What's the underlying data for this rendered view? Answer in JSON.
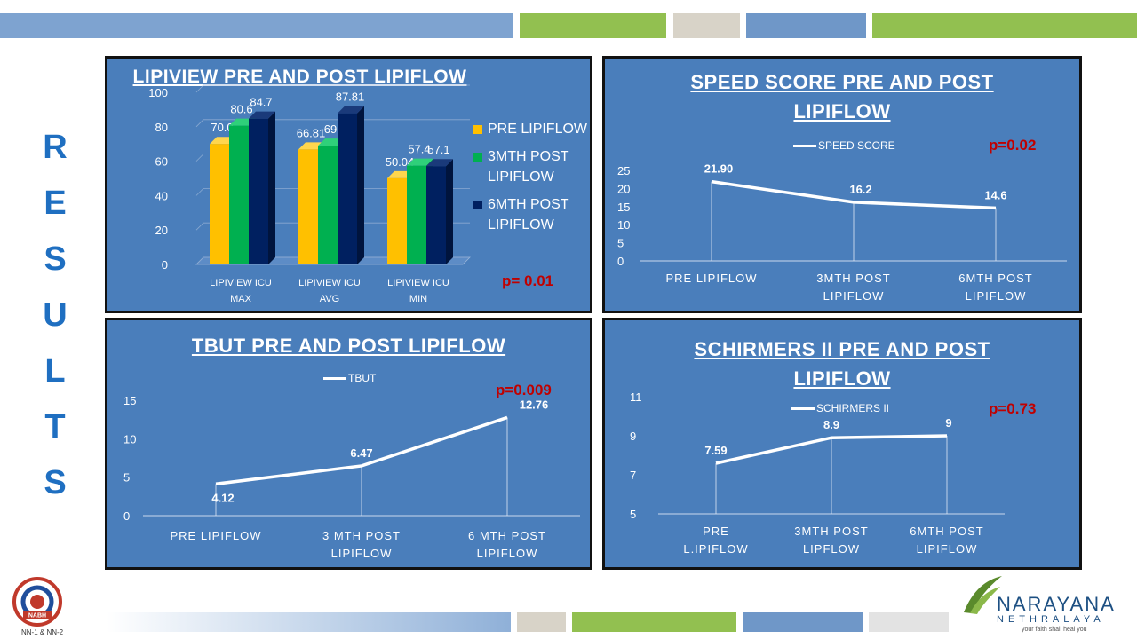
{
  "heading": {
    "letters": [
      "R",
      "E",
      "S",
      "U",
      "L",
      "T",
      "S"
    ]
  },
  "colors": {
    "panel": "#4a7ebb",
    "pre": "#ffc000",
    "m3": "#00b050",
    "m6": "#002060",
    "pvalue": "#c00000"
  },
  "lipiview": {
    "title": "LIPIVIEW PRE AND POST LIPIFLOW",
    "pvalue": "p= 0.01",
    "legend": [
      "PRE LIPIFLOW",
      "3MTH POST LIPIFLOW",
      "6MTH POST LIPIFLOW"
    ]
  },
  "speed": {
    "title": "SPEED SCORE PRE AND POST LIPIFLOW",
    "legend": "SPEED SCORE",
    "pvalue": "p=0.02"
  },
  "tbut": {
    "title": "TBUT PRE AND POST LIPIFLOW",
    "legend": "TBUT",
    "pvalue": "p=0.009"
  },
  "schirmer": {
    "title": "SCHIRMERS II PRE AND POST LIPIFLOW",
    "legend": "SCHIRMERS II",
    "pvalue": "p=0.73"
  },
  "chart_data": [
    {
      "type": "bar",
      "title": "LIPIVIEW PRE AND POST LIPIFLOW",
      "categories": [
        "LIPIVIEW ICU MAX",
        "LIPIVIEW ICU AVG",
        "LIPIVIEW ICU MIN"
      ],
      "series": [
        {
          "name": "PRE LIPIFLOW",
          "values": [
            70.0,
            66.81,
            50.04
          ],
          "labels": [
            "70.0",
            "66.81",
            "50.04"
          ]
        },
        {
          "name": "3MTH POST LIPIFLOW",
          "values": [
            80.6,
            69,
            57.4
          ],
          "labels": [
            "80.6",
            "69",
            "57.4"
          ]
        },
        {
          "name": "6MTH POST LIPIFLOW",
          "values": [
            84.7,
            87.81,
            57.1
          ],
          "labels": [
            "84.7",
            "87.81",
            "57.1"
          ]
        }
      ],
      "yticks": [
        0,
        20,
        40,
        60,
        80,
        100
      ],
      "ylim": [
        0,
        100
      ],
      "legend_position": "right"
    },
    {
      "type": "line",
      "title": "SPEED SCORE PRE AND POST LIPIFLOW",
      "categories": [
        "PRE LIPIFLOW",
        "3MTH POST LIPIFLOW",
        "6MTH POST LIPIFLOW"
      ],
      "series": [
        {
          "name": "SPEED SCORE",
          "values": [
            21.9,
            16.2,
            14.6
          ],
          "labels": [
            "21.90",
            "16.2",
            "14.6"
          ]
        }
      ],
      "yticks": [
        0,
        5,
        10,
        15,
        20,
        25
      ],
      "ylim": [
        0,
        25
      ],
      "legend_position": "top"
    },
    {
      "type": "line",
      "title": "TBUT PRE AND POST LIPIFLOW",
      "categories": [
        "PRE LIPIFLOW",
        "3 MTH POST LIPIFLOW",
        "6 MTH POST LIPIFLOW"
      ],
      "series": [
        {
          "name": "TBUT",
          "values": [
            4.12,
            6.47,
            12.76
          ],
          "labels": [
            "4.12",
            "6.47",
            "12.76"
          ]
        }
      ],
      "yticks": [
        0,
        5,
        10,
        15
      ],
      "ylim": [
        0,
        15
      ],
      "legend_position": "top"
    },
    {
      "type": "line",
      "title": "SCHIRMERS II PRE AND POST LIPIFLOW",
      "categories": [
        "PRE L.IPIFLOW",
        "3MTH POST LIPFLOW",
        "6MTH POST LIPIFLOW"
      ],
      "series": [
        {
          "name": "SCHIRMERS II",
          "values": [
            7.59,
            8.9,
            9
          ],
          "labels": [
            "7.59",
            "8.9",
            "9"
          ]
        }
      ],
      "yticks": [
        5,
        7,
        9,
        11
      ],
      "ylim": [
        5,
        11
      ],
      "legend_position": "top"
    }
  ],
  "footer": {
    "nabh": "NABH",
    "nabh_caption": "NN-1 & NN-2",
    "brand": "NARAYANA",
    "brand_sub": "NETHRALAYA",
    "tagline": "your faith shall heal you"
  }
}
